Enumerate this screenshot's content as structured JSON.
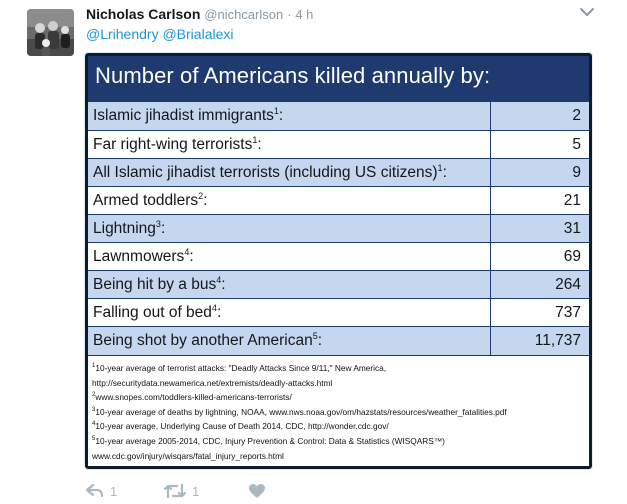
{
  "tweet": {
    "author_name": "Nicholas Carlson",
    "handle": "@nichcarlson",
    "separator": "·",
    "time": "4 h",
    "mentions": [
      "@Lrihendry",
      "@Brialalexi"
    ]
  },
  "image": {
    "title": "Number of Americans killed annually by:",
    "rows": [
      {
        "label": "Islamic jihadist immigrants",
        "sup": "1",
        "suffix": ":",
        "value": "2"
      },
      {
        "label": "Far right-wing terrorists",
        "sup": "1",
        "suffix": ":",
        "value": "5"
      },
      {
        "label": "All Islamic jihadist terrorists (including US citizens)",
        "sup": "1",
        "suffix": ":",
        "value": "9"
      },
      {
        "label": "Armed toddlers",
        "sup": "2",
        "suffix": ":",
        "value": "21"
      },
      {
        "label": "Lightning",
        "sup": "3",
        "suffix": ":",
        "value": "31"
      },
      {
        "label": "Lawnmowers",
        "sup": "4",
        "suffix": ":",
        "value": "69"
      },
      {
        "label": "Being hit by a bus",
        "sup": "4",
        "suffix": ":",
        "value": "264"
      },
      {
        "label": "Falling out of bed",
        "sup": "4",
        "suffix": ":",
        "value": "737"
      },
      {
        "label": "Being shot by another American",
        "sup": "5",
        "suffix": ":",
        "value": "11,737"
      }
    ],
    "footnotes": [
      {
        "sup": "1",
        "text": "10-year average of terrorist attacks: \"Deadly Attacks Since 9/11,\" New America,"
      },
      {
        "sup": "",
        "text": "http://securitydata.newamerica.net/extremists/deadly-attacks.html"
      },
      {
        "sup": "2",
        "text": "www.snopes.com/toddlers-killed-americans-terrorists/"
      },
      {
        "sup": "3",
        "text": "10-year average of deaths by lightning, NOAA, www.nws.noaa.gov/om/hazstats/resources/weather_fatalities.pdf"
      },
      {
        "sup": "4",
        "text": "10-year average, Underlying Cause of Death 2014, CDC, http://wonder.cdc.gov/"
      },
      {
        "sup": "5",
        "text": "10-year average 2005-2014, CDC, Injury Prevention & Control: Data & Statistics (WISQARS™)"
      },
      {
        "sup": "",
        "text": "www.cdc.gov/injury/wisqars/fatal_injury_reports.html"
      }
    ]
  },
  "actions": {
    "reply_count": "1",
    "retweet_count": "1",
    "like_count": ""
  },
  "icons": {
    "avatar": "profile-photo",
    "caret": "chevron-down-icon",
    "reply": "reply-icon",
    "retweet": "retweet-icon",
    "like": "heart-icon"
  },
  "colors": {
    "mention": "#1b95e0",
    "muted": "#8899a6",
    "action_icon": "#aab8c2",
    "table_title_bg": "#1e3a6e",
    "row_blue": "#c5d7ee"
  }
}
